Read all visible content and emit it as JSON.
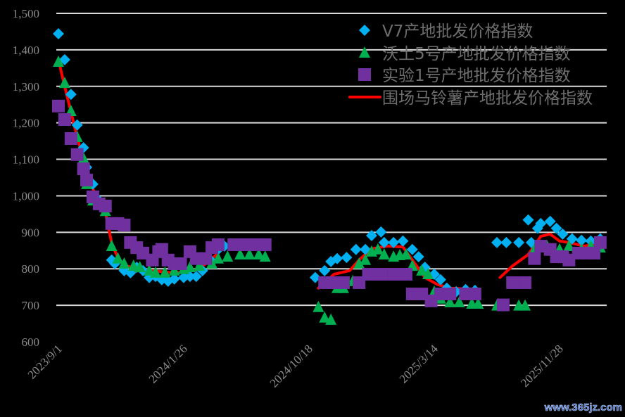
{
  "chart_data": {
    "type": "scatter",
    "title": "",
    "xlabel": "",
    "ylabel": "",
    "ylim": [
      600,
      1500
    ],
    "yticks": [
      "600",
      "700",
      "800",
      "900",
      "1,000",
      "1,100",
      "1,200",
      "1,300",
      "1,400",
      "1,500"
    ],
    "ytick_values": [
      600,
      700,
      800,
      900,
      1000,
      1100,
      1200,
      1300,
      1400,
      1500
    ],
    "grid": true,
    "background": "#000000",
    "x_axis": "category index (dates)",
    "xlim": [
      0,
      176
    ],
    "xticks": [
      {
        "index": 0,
        "label": "2023/9/1"
      },
      {
        "index": 40,
        "label": "2024/1/26"
      },
      {
        "index": 80,
        "label": "2024/10/18"
      },
      {
        "index": 120,
        "label": "2025/3/14"
      },
      {
        "index": 160,
        "label": "2025/11/28"
      }
    ],
    "legend_position": "top-right",
    "series": [
      {
        "name": "V7产地批发价格指数",
        "marker": "diamond",
        "color": "#00b0f0",
        "points": [
          [
            0,
            1444
          ],
          [
            2,
            1373
          ],
          [
            4,
            1278
          ],
          [
            6,
            1194
          ],
          [
            8,
            1132
          ],
          [
            9,
            1078
          ],
          [
            11,
            1032
          ],
          [
            13,
            987
          ],
          [
            15,
            962
          ],
          [
            17,
            824
          ],
          [
            18,
            814
          ],
          [
            21,
            795
          ],
          [
            23,
            789
          ],
          [
            25,
            804
          ],
          [
            27,
            795
          ],
          [
            29,
            776
          ],
          [
            31,
            779
          ],
          [
            33,
            770
          ],
          [
            35,
            766
          ],
          [
            37,
            772
          ],
          [
            40,
            776
          ],
          [
            42,
            779
          ],
          [
            44,
            779
          ],
          [
            46,
            795
          ],
          [
            49,
            820
          ],
          [
            51,
            853
          ],
          [
            53,
            862
          ],
          [
            56,
            866
          ],
          [
            60,
            866
          ],
          [
            63,
            866
          ],
          [
            66,
            864
          ],
          [
            82,
            776
          ],
          [
            85,
            795
          ],
          [
            87,
            820
          ],
          [
            89,
            828
          ],
          [
            92,
            831
          ],
          [
            95,
            853
          ],
          [
            98,
            853
          ],
          [
            100,
            891
          ],
          [
            103,
            901
          ],
          [
            104,
            872
          ],
          [
            107,
            872
          ],
          [
            110,
            876
          ],
          [
            113,
            853
          ],
          [
            115,
            833
          ],
          [
            117,
            804
          ],
          [
            120,
            785
          ],
          [
            122,
            770
          ],
          [
            124,
            747
          ],
          [
            127,
            737
          ],
          [
            130,
            743
          ],
          [
            133,
            741
          ],
          [
            140,
            872
          ],
          [
            143,
            872
          ],
          [
            147,
            872
          ],
          [
            150,
            934
          ],
          [
            151,
            872
          ],
          [
            153,
            911
          ],
          [
            154,
            924
          ],
          [
            157,
            930
          ],
          [
            159,
            911
          ],
          [
            161,
            895
          ],
          [
            164,
            882
          ],
          [
            167,
            878
          ],
          [
            170,
            876
          ],
          [
            173,
            882
          ]
        ]
      },
      {
        "name": "沃土5号产地批发价格指数",
        "marker": "triangle",
        "color": "#00b050",
        "points": [
          [
            0,
            1367
          ],
          [
            2,
            1309
          ],
          [
            4,
            1232
          ],
          [
            6,
            1161
          ],
          [
            8,
            1103
          ],
          [
            9,
            1032
          ],
          [
            11,
            987
          ],
          [
            15,
            958
          ],
          [
            17,
            862
          ],
          [
            19,
            828
          ],
          [
            21,
            814
          ],
          [
            24,
            808
          ],
          [
            26,
            804
          ],
          [
            29,
            795
          ],
          [
            31,
            789
          ],
          [
            34,
            789
          ],
          [
            37,
            795
          ],
          [
            40,
            799
          ],
          [
            42,
            804
          ],
          [
            45,
            808
          ],
          [
            49,
            814
          ],
          [
            51,
            828
          ],
          [
            54,
            833
          ],
          [
            58,
            839
          ],
          [
            61,
            839
          ],
          [
            64,
            839
          ],
          [
            66,
            833
          ],
          [
            83,
            695
          ],
          [
            85,
            666
          ],
          [
            87,
            660
          ],
          [
            89,
            747
          ],
          [
            91,
            747
          ],
          [
            94,
            766
          ],
          [
            96,
            814
          ],
          [
            98,
            824
          ],
          [
            100,
            847
          ],
          [
            102,
            853
          ],
          [
            104,
            839
          ],
          [
            107,
            833
          ],
          [
            109,
            837
          ],
          [
            111,
            839
          ],
          [
            113,
            808
          ],
          [
            116,
            795
          ],
          [
            118,
            785
          ],
          [
            120,
            737
          ],
          [
            122,
            718
          ],
          [
            125,
            708
          ],
          [
            128,
            708
          ],
          [
            132,
            704
          ],
          [
            134,
            704
          ],
          [
            140,
            699
          ],
          [
            147,
            699
          ],
          [
            149,
            699
          ],
          [
            152,
            853
          ],
          [
            156,
            862
          ],
          [
            160,
            853
          ],
          [
            163,
            862
          ],
          [
            167,
            853
          ],
          [
            170,
            862
          ],
          [
            173,
            858
          ]
        ]
      },
      {
        "name": "实验1号产地批发价格指数",
        "marker": "square",
        "color": "#7030a0",
        "points": [
          [
            0,
            1246
          ],
          [
            2,
            1209
          ],
          [
            4,
            1157
          ],
          [
            6,
            1113
          ],
          [
            8,
            1074
          ],
          [
            9,
            1043
          ],
          [
            11,
            997
          ],
          [
            13,
            978
          ],
          [
            15,
            972
          ],
          [
            17,
            924
          ],
          [
            19,
            924
          ],
          [
            21,
            920
          ],
          [
            23,
            872
          ],
          [
            25,
            858
          ],
          [
            27,
            843
          ],
          [
            30,
            824
          ],
          [
            32,
            847
          ],
          [
            33,
            853
          ],
          [
            35,
            824
          ],
          [
            37,
            814
          ],
          [
            39,
            814
          ],
          [
            42,
            847
          ],
          [
            44,
            828
          ],
          [
            47,
            828
          ],
          [
            49,
            858
          ],
          [
            51,
            866
          ],
          [
            56,
            866
          ],
          [
            60,
            866
          ],
          [
            63,
            866
          ],
          [
            66,
            866
          ],
          [
            85,
            762
          ],
          [
            88,
            762
          ],
          [
            91,
            762
          ],
          [
            96,
            762
          ],
          [
            99,
            785
          ],
          [
            103,
            785
          ],
          [
            107,
            785
          ],
          [
            111,
            785
          ],
          [
            113,
            731
          ],
          [
            116,
            731
          ],
          [
            119,
            712
          ],
          [
            122,
            731
          ],
          [
            125,
            731
          ],
          [
            130,
            731
          ],
          [
            133,
            731
          ],
          [
            142,
            701
          ],
          [
            145,
            762
          ],
          [
            149,
            762
          ],
          [
            152,
            828
          ],
          [
            154,
            862
          ],
          [
            157,
            853
          ],
          [
            159,
            833
          ],
          [
            161,
            833
          ],
          [
            163,
            824
          ],
          [
            166,
            843
          ],
          [
            169,
            843
          ],
          [
            171,
            843
          ],
          [
            173,
            872
          ]
        ]
      },
      {
        "name": "围场马铃薯产地批发价格指数",
        "marker": "line",
        "color": "#ff0000",
        "segments": [
          [
            [
              0,
              1373
            ],
            [
              2,
              1300
            ],
            [
              4,
              1230
            ],
            [
              6,
              1160
            ],
            [
              8,
              1100
            ],
            [
              10,
              1045
            ],
            [
              12,
              995
            ],
            [
              15,
              955
            ],
            [
              17,
              870
            ],
            [
              19,
              830
            ],
            [
              21,
              810
            ],
            [
              25,
              800
            ],
            [
              30,
              795
            ],
            [
              35,
              790
            ],
            [
              40,
              790
            ],
            [
              45,
              800
            ],
            [
              50,
              835
            ],
            [
              53,
              860
            ],
            [
              60,
              865
            ],
            [
              66,
              865
            ]
          ],
          [
            [
              83,
              747
            ],
            [
              88,
              785
            ],
            [
              93,
              795
            ],
            [
              96,
              824
            ],
            [
              100,
              855
            ],
            [
              105,
              862
            ],
            [
              110,
              860
            ],
            [
              113,
              824
            ],
            [
              117,
              776
            ],
            [
              121,
              757
            ],
            [
              125,
              747
            ],
            [
              130,
              745
            ],
            [
              134,
              743
            ]
          ],
          [
            [
              141,
              776
            ],
            [
              145,
              808
            ],
            [
              150,
              839
            ],
            [
              154,
              889
            ],
            [
              157,
              895
            ],
            [
              160,
              876
            ],
            [
              163,
              872
            ],
            [
              168,
              862
            ],
            [
              173,
              872
            ]
          ]
        ]
      }
    ]
  },
  "watermark": "www.365jz.com"
}
